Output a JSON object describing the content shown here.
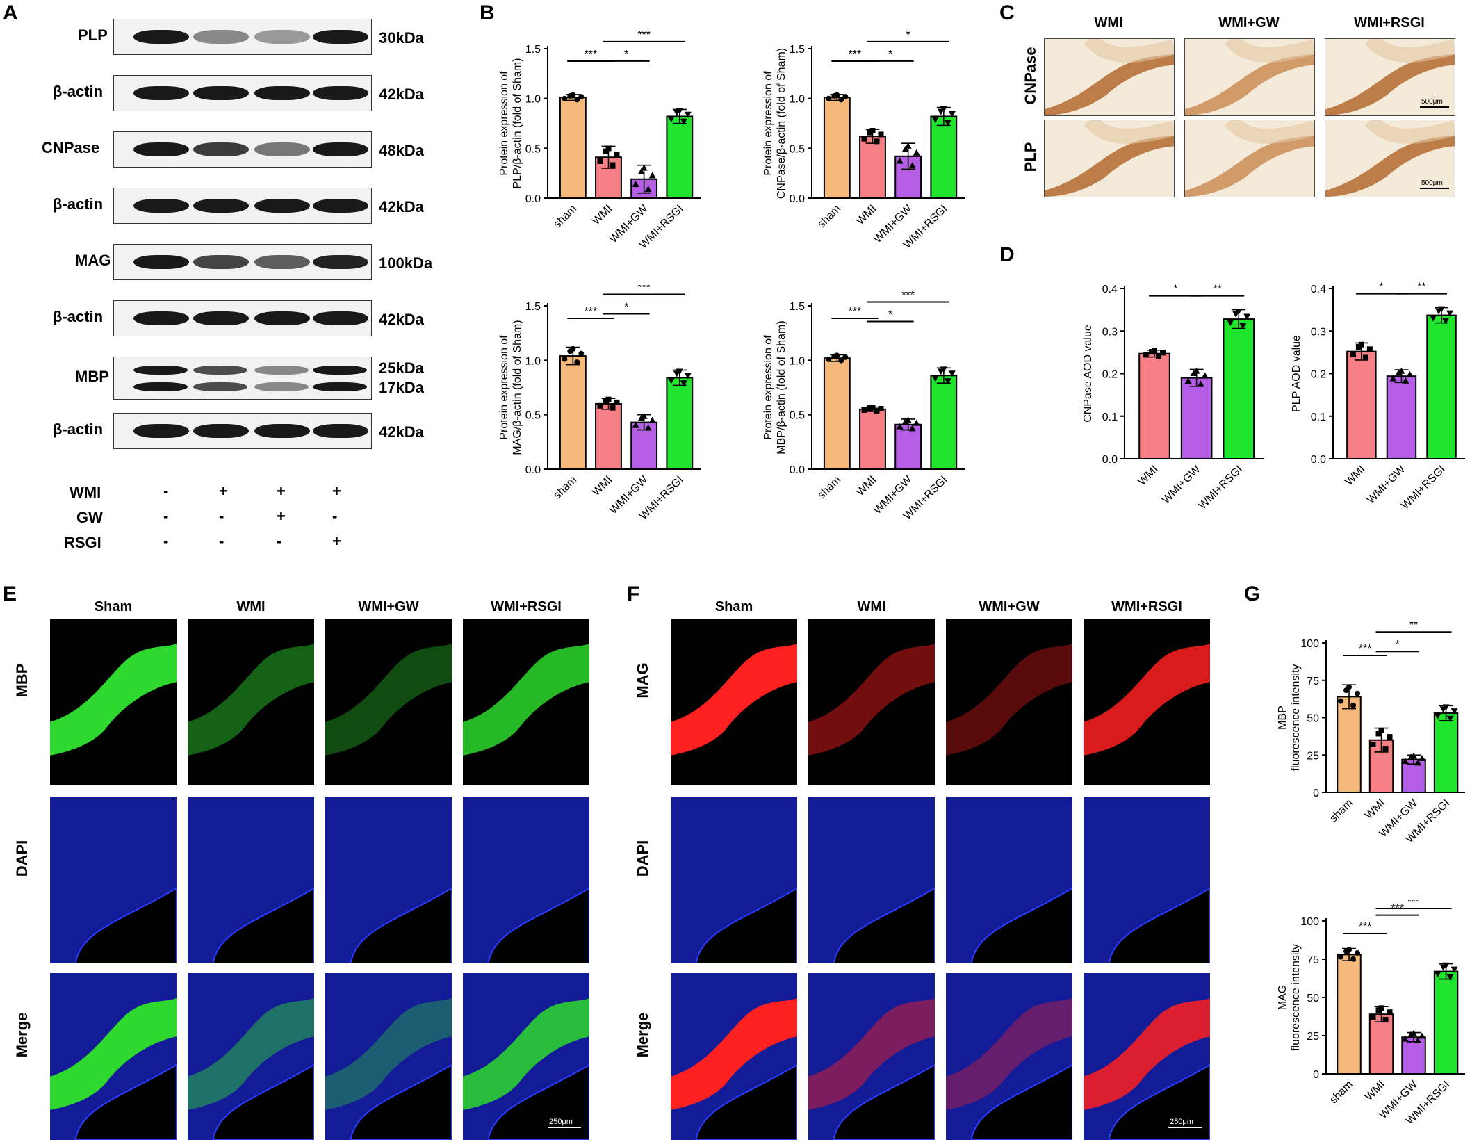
{
  "panels": {
    "A": "A",
    "B": "B",
    "C": "C",
    "D": "D",
    "E": "E",
    "F": "F",
    "G": "G"
  },
  "colors": {
    "sham": "#F5B97C",
    "wmi": "#F77F86",
    "gw": "#B45EE6",
    "rsgi": "#1FE62C"
  },
  "blot": {
    "rows": [
      {
        "name": "PLP",
        "size": "30kDa",
        "intensity": [
          1.0,
          0.35,
          0.25,
          1.0
        ],
        "doublet": false
      },
      {
        "name": "β-actin",
        "size": "42kDa",
        "intensity": [
          1,
          1,
          1,
          1
        ],
        "doublet": false
      },
      {
        "name": "CNPase",
        "size": "48kDa",
        "intensity": [
          1.0,
          0.8,
          0.45,
          1.0
        ],
        "doublet": false
      },
      {
        "name": "β-actin",
        "size": "42kDa",
        "intensity": [
          1,
          1,
          1,
          1
        ],
        "doublet": false
      },
      {
        "name": "MAG",
        "size": "100kDa",
        "intensity": [
          1.0,
          0.75,
          0.6,
          0.95
        ],
        "doublet": false
      },
      {
        "name": "β-actin",
        "size": "42kDa",
        "intensity": [
          1,
          1,
          1,
          1
        ],
        "doublet": false
      },
      {
        "name": "MBP",
        "size": "25kDa",
        "size2": "17kDa",
        "intensity": [
          1.0,
          0.7,
          0.35,
          1.0
        ],
        "doublet": true
      },
      {
        "name": "β-actin",
        "size": "42kDa",
        "intensity": [
          1,
          1,
          1,
          1
        ],
        "doublet": false
      }
    ],
    "conditions": [
      {
        "name": "WMI",
        "signs": [
          "-",
          "+",
          "+",
          "+"
        ]
      },
      {
        "name": "GW",
        "signs": [
          "-",
          "-",
          "+",
          "-"
        ]
      },
      {
        "name": "RSGI",
        "signs": [
          "-",
          "-",
          "-",
          "+"
        ]
      }
    ]
  },
  "chart_data": [
    {
      "id": "B1",
      "type": "bar",
      "ylabel": "Protein expression of\nPLP/β-actin (fold of Sham)",
      "categories": [
        "sham",
        "WMI",
        "WMI+GW",
        "WMI+RSGI"
      ],
      "values": [
        1.01,
        0.41,
        0.19,
        0.82
      ],
      "errors": [
        0.03,
        0.11,
        0.14,
        0.07
      ],
      "ylim": [
        0,
        1.5
      ],
      "yticks": [
        0,
        0.5,
        1.0,
        1.5
      ],
      "tick_labels": [
        "0.0",
        "0.5",
        "1.0",
        "1.5"
      ],
      "sigs": [
        {
          "from": 0,
          "to": 1,
          "label": "***",
          "level": 0
        },
        {
          "from": 1,
          "to": 2,
          "label": "*",
          "level": 1
        },
        {
          "from": 1,
          "to": 3,
          "label": "***",
          "level": 2
        }
      ]
    },
    {
      "id": "B2",
      "type": "bar",
      "ylabel": "Protein expression of\nCNPase/β-actin (fold of Sham)",
      "categories": [
        "sham",
        "WMI",
        "WMI+GW",
        "WMI+RSGI"
      ],
      "values": [
        1.01,
        0.62,
        0.42,
        0.82
      ],
      "errors": [
        0.03,
        0.07,
        0.13,
        0.09
      ],
      "ylim": [
        0,
        1.5
      ],
      "yticks": [
        0,
        0.5,
        1.0,
        1.5
      ],
      "tick_labels": [
        "0.0",
        "0.5",
        "1.0",
        "1.5"
      ],
      "sigs": [
        {
          "from": 0,
          "to": 1,
          "label": "***",
          "level": 0
        },
        {
          "from": 1,
          "to": 2,
          "label": "*",
          "level": 1
        },
        {
          "from": 1,
          "to": 3,
          "label": "*",
          "level": 2
        }
      ]
    },
    {
      "id": "B3",
      "type": "bar",
      "ylabel": "Protein expression of\nMAG/β-actin (fold of Sham)",
      "categories": [
        "sham",
        "WMI",
        "WMI+GW",
        "WMI+RSGI"
      ],
      "values": [
        1.04,
        0.6,
        0.43,
        0.84
      ],
      "errors": [
        0.08,
        0.05,
        0.07,
        0.07
      ],
      "ylim": [
        0,
        1.5
      ],
      "yticks": [
        0,
        0.5,
        1.0,
        1.5
      ],
      "tick_labels": [
        "0.0",
        "0.5",
        "1.0",
        "1.5"
      ],
      "sigs": [
        {
          "from": 0,
          "to": 1,
          "label": "***",
          "level": 0
        },
        {
          "from": 1,
          "to": 2,
          "label": "*",
          "level": 1
        },
        {
          "from": 1,
          "to": 3,
          "label": "***",
          "level": 2
        }
      ]
    },
    {
      "id": "B4",
      "type": "bar",
      "ylabel": "Protein expression of\nMBP/β-actin (fold of Sham)",
      "categories": [
        "sham",
        "WMI",
        "WMI+GW",
        "WMI+RSGI"
      ],
      "values": [
        1.02,
        0.55,
        0.41,
        0.86
      ],
      "errors": [
        0.03,
        0.02,
        0.05,
        0.07
      ],
      "ylim": [
        0,
        1.5
      ],
      "yticks": [
        0,
        0.5,
        1.0,
        1.5
      ],
      "tick_labels": [
        "0.0",
        "0.5",
        "1.0",
        "1.5"
      ],
      "sigs": [
        {
          "from": 0,
          "to": 1,
          "label": "***",
          "level": 0
        },
        {
          "from": 1,
          "to": 2,
          "label": "*",
          "level": 1
        },
        {
          "from": 1,
          "to": 3,
          "label": "***",
          "level": 2
        }
      ]
    },
    {
      "id": "D1",
      "type": "bar",
      "ylabel": "CNPase AOD value",
      "categories": [
        "WMI",
        "WMI+GW",
        "WMI+RSGI"
      ],
      "values": [
        0.247,
        0.19,
        0.328
      ],
      "errors": [
        0.008,
        0.02,
        0.022
      ],
      "ylim": [
        0,
        0.4
      ],
      "yticks": [
        0,
        0.1,
        0.2,
        0.3,
        0.4
      ],
      "tick_labels": [
        "0.0",
        "0.1",
        "0.2",
        "0.3",
        "0.4"
      ],
      "sigs": [
        {
          "from": 0,
          "to": 1,
          "label": "*",
          "level": 0
        },
        {
          "from": 1,
          "to": 2,
          "label": "**",
          "level": 0
        }
      ]
    },
    {
      "id": "D2",
      "type": "bar",
      "ylabel": "PLP AOD value",
      "categories": [
        "WMI",
        "WMI+GW",
        "WMI+RSGI"
      ],
      "values": [
        0.252,
        0.194,
        0.337
      ],
      "errors": [
        0.02,
        0.015,
        0.018
      ],
      "ylim": [
        0,
        0.4
      ],
      "yticks": [
        0,
        0.1,
        0.2,
        0.3,
        0.4
      ],
      "tick_labels": [
        "0.0",
        "0.1",
        "0.2",
        "0.3",
        "0.4"
      ],
      "sigs": [
        {
          "from": 0,
          "to": 1,
          "label": "*",
          "level": 0
        },
        {
          "from": 1,
          "to": 2,
          "label": "**",
          "level": 0
        }
      ]
    },
    {
      "id": "G1",
      "type": "bar",
      "ylabel": "MBP\nfluorescence intensity",
      "categories": [
        "sham",
        "WMI",
        "WMI+GW",
        "WMI+RSGI"
      ],
      "values": [
        64,
        35,
        22,
        53
      ],
      "errors": [
        8,
        8,
        3,
        5
      ],
      "ylim": [
        0,
        100
      ],
      "yticks": [
        0,
        25,
        50,
        75,
        100
      ],
      "tick_labels": [
        "0",
        "25",
        "50",
        "75",
        "100"
      ],
      "sigs": [
        {
          "from": 0,
          "to": 1,
          "label": "***",
          "level": 0
        },
        {
          "from": 1,
          "to": 2,
          "label": "*",
          "level": 1
        },
        {
          "from": 1,
          "to": 3,
          "label": "**",
          "level": 2
        }
      ]
    },
    {
      "id": "G2",
      "type": "bar",
      "ylabel": "MAG\nfluorescence intensity",
      "categories": [
        "sham",
        "WMI",
        "WMI+GW",
        "WMI+RSGI"
      ],
      "values": [
        78,
        39,
        24,
        67
      ],
      "errors": [
        4,
        5,
        3,
        5
      ],
      "ylim": [
        0,
        100
      ],
      "yticks": [
        0,
        25,
        50,
        75,
        100
      ],
      "tick_labels": [
        "0",
        "25",
        "50",
        "75",
        "100"
      ],
      "sigs": [
        {
          "from": 0,
          "to": 1,
          "label": "***",
          "level": 0
        },
        {
          "from": 1,
          "to": 2,
          "label": "***",
          "level": 1
        },
        {
          "from": 1,
          "to": 3,
          "label": "***",
          "level": 2
        }
      ]
    }
  ],
  "C": {
    "cols": [
      "WMI",
      "WMI+GW",
      "WMI+RSGI"
    ],
    "rows": [
      "CNPase",
      "PLP"
    ],
    "scale": "500μm"
  },
  "E": {
    "cols": [
      "Sham",
      "WMI",
      "WMI+GW",
      "WMI+RSGI"
    ],
    "rows": [
      "MBP",
      "DAPI",
      "Merge"
    ],
    "scale": "250μm"
  },
  "F": {
    "cols": [
      "Sham",
      "WMI",
      "WMI+GW",
      "WMI+RSGI"
    ],
    "rows": [
      "MAG",
      "DAPI",
      "Merge"
    ],
    "scale": "250μm"
  }
}
